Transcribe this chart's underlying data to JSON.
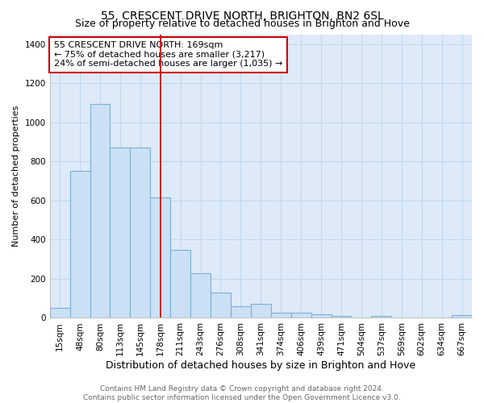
{
  "title": "55, CRESCENT DRIVE NORTH, BRIGHTON, BN2 6SL",
  "subtitle": "Size of property relative to detached houses in Brighton and Hove",
  "xlabel": "Distribution of detached houses by size in Brighton and Hove",
  "ylabel": "Number of detached properties",
  "categories": [
    "15sqm",
    "48sqm",
    "80sqm",
    "113sqm",
    "145sqm",
    "178sqm",
    "211sqm",
    "243sqm",
    "276sqm",
    "308sqm",
    "341sqm",
    "374sqm",
    "406sqm",
    "439sqm",
    "471sqm",
    "504sqm",
    "537sqm",
    "569sqm",
    "602sqm",
    "634sqm",
    "667sqm"
  ],
  "values": [
    50,
    750,
    1095,
    870,
    870,
    615,
    348,
    228,
    130,
    60,
    70,
    28,
    27,
    18,
    12,
    0,
    10,
    0,
    0,
    0,
    13
  ],
  "bar_color": "#cce0f5",
  "bar_edge_color": "#7aafd4",
  "grid_color": "#c0d8ee",
  "background_color": "#deeaf8",
  "vline_x": 5.0,
  "vline_color": "#cc0000",
  "annotation_text": "55 CRESCENT DRIVE NORTH: 169sqm\n← 75% of detached houses are smaller (3,217)\n24% of semi-detached houses are larger (1,035) →",
  "annotation_box_color": "white",
  "annotation_box_edge": "#cc0000",
  "ylim": [
    0,
    1450
  ],
  "yticks": [
    0,
    200,
    400,
    600,
    800,
    1000,
    1200,
    1400
  ],
  "footer": "Contains HM Land Registry data © Crown copyright and database right 2024.\nContains public sector information licensed under the Open Government Licence v3.0.",
  "title_fontsize": 10,
  "subtitle_fontsize": 9,
  "xlabel_fontsize": 9,
  "ylabel_fontsize": 8,
  "tick_fontsize": 7.5,
  "annotation_fontsize": 8,
  "footer_fontsize": 6.5
}
